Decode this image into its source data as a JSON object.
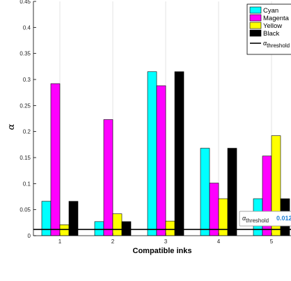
{
  "chart_data": {
    "type": "bar",
    "categories": [
      "1",
      "2",
      "3",
      "4",
      "5"
    ],
    "series": [
      {
        "name": "Cyan",
        "color": "#00ffff",
        "values": [
          0.066,
          0.027,
          0.315,
          0.168,
          0.071
        ]
      },
      {
        "name": "Magenta",
        "color": "#ff00ff",
        "values": [
          0.292,
          0.223,
          0.288,
          0.101,
          0.153
        ]
      },
      {
        "name": "Yellow",
        "color": "#ffff00",
        "values": [
          0.021,
          0.042,
          0.028,
          0.071,
          0.192
        ]
      },
      {
        "name": "Black",
        "color": "#000000",
        "values": [
          0.066,
          0.027,
          0.315,
          0.168,
          0.071
        ]
      }
    ],
    "threshold": {
      "symbol": "α",
      "subscript": "threshold",
      "value": 0.012,
      "value_label": "0.012",
      "color": "#000000"
    },
    "xlabel": "Compatible inks",
    "ylabel": "α",
    "ylim": [
      0,
      0.45
    ],
    "yticks": [
      "0",
      "0.05",
      "0.1",
      "0.15",
      "0.2",
      "0.25",
      "0.3",
      "0.35",
      "0.4",
      "0.45"
    ],
    "grid": "vertical",
    "legend_position": "top-right"
  }
}
